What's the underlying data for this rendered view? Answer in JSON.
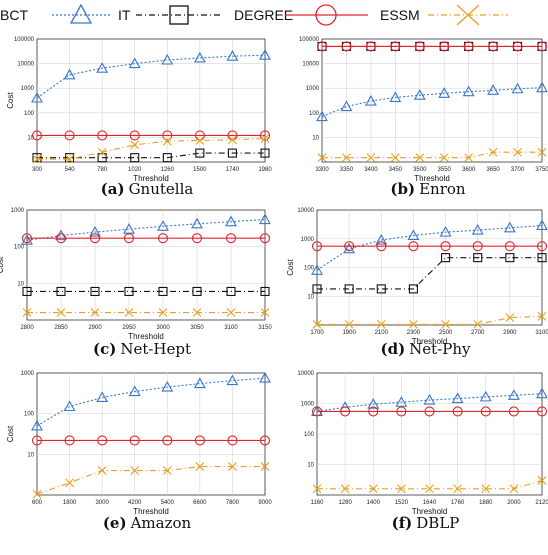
{
  "legend": {
    "items": [
      {
        "label": "BCT",
        "series": "BCT"
      },
      {
        "label": "IT",
        "series": "IT"
      },
      {
        "label": "DEGREE",
        "series": "DEGREE"
      },
      {
        "label": "ESSM",
        "series": "ESSM"
      }
    ]
  },
  "styles": {
    "BCT": {
      "color": "#3a78c9",
      "dash": "2,2",
      "marker": "triangle"
    },
    "IT": {
      "color": "#111111",
      "dash": "6,3,1,3",
      "marker": "square"
    },
    "DEGREE": {
      "color": "#e0242b",
      "dash": "",
      "marker": "circle"
    },
    "ESSM": {
      "color": "#e8a020",
      "dash": "6,3,1,3",
      "marker": "x"
    }
  },
  "chart_data": [
    {
      "type": "line",
      "id": "a",
      "caption_letter": "(a)",
      "caption_name": "Gnutella",
      "xlabel": "Threshold",
      "ylabel": "Cost",
      "yscale": "log",
      "x": [
        300,
        540,
        780,
        1020,
        1260,
        1500,
        1740,
        1980
      ],
      "x_ticks": [
        "300",
        "540",
        "780",
        "1020",
        "1260",
        "1500",
        "1740",
        "1980"
      ],
      "ylim": [
        1,
        100000
      ],
      "y_ticks": [
        {
          "v": 10,
          "label": "10"
        },
        {
          "v": 100,
          "label": "100"
        },
        {
          "v": 1000,
          "label": "1000"
        },
        {
          "v": 10000,
          "label": "10000"
        },
        {
          "v": 100000,
          "label": "100000"
        }
      ],
      "series": [
        {
          "name": "BCT",
          "values": [
            400,
            3500,
            6500,
            10000,
            14000,
            17000,
            20000,
            22000
          ]
        },
        {
          "name": "IT",
          "values": [
            1.5,
            1.5,
            1.5,
            1.5,
            1.5,
            2.3,
            2.3,
            2.3
          ]
        },
        {
          "name": "DEGREE",
          "values": [
            12,
            12,
            12,
            12,
            12,
            12,
            12,
            12
          ]
        },
        {
          "name": "ESSM",
          "values": [
            1.3,
            1.3,
            2.5,
            5,
            7,
            7.5,
            8,
            9
          ]
        }
      ]
    },
    {
      "type": "line",
      "id": "b",
      "caption_letter": "(b)",
      "caption_name": "Enron",
      "xlabel": "Threshold",
      "ylabel": "",
      "yscale": "log",
      "x": [
        3300,
        3350,
        3400,
        3450,
        3500,
        3550,
        3600,
        3650,
        3700,
        3750
      ],
      "x_ticks": [
        "3300",
        "3350",
        "3400",
        "3450",
        "3500",
        "3550",
        "3600",
        "3650",
        "3700",
        "3750"
      ],
      "ylim": [
        1,
        100000
      ],
      "y_ticks": [
        {
          "v": 10,
          "label": "10"
        },
        {
          "v": 100,
          "label": "100"
        },
        {
          "v": 1000,
          "label": "1000"
        },
        {
          "v": 10000,
          "label": "10000"
        },
        {
          "v": 100000,
          "label": "100000"
        }
      ],
      "series": [
        {
          "name": "BCT",
          "values": [
            70,
            180,
            300,
            420,
            520,
            620,
            720,
            820,
            950,
            1050
          ]
        },
        {
          "name": "IT",
          "values": [
            50000,
            50000,
            50000,
            50000,
            50000,
            50000,
            50000,
            50000,
            50000,
            50000
          ]
        },
        {
          "name": "DEGREE",
          "values": [
            50000,
            50000,
            50000,
            50000,
            50000,
            50000,
            50000,
            50000,
            50000,
            50000
          ]
        },
        {
          "name": "ESSM",
          "values": [
            1.5,
            1.5,
            1.5,
            1.5,
            1.5,
            1.5,
            1.5,
            2.5,
            2.5,
            2.5
          ]
        }
      ]
    },
    {
      "type": "line",
      "id": "c",
      "caption_letter": "(c)",
      "caption_name": "Net-Hept",
      "xlabel": "Threshold",
      "ylabel": "Cost",
      "yscale": "log",
      "x": [
        2800,
        2850,
        2900,
        2950,
        3000,
        3050,
        3100,
        3150
      ],
      "x_ticks": [
        "2800",
        "2850",
        "2900",
        "2950",
        "3000",
        "3050",
        "3100",
        "3150"
      ],
      "ylim": [
        1,
        1000
      ],
      "y_ticks": [
        {
          "v": 10,
          "label": "10"
        },
        {
          "v": 100,
          "label": "100"
        },
        {
          "v": 1000,
          "label": "1000"
        }
      ],
      "series": [
        {
          "name": "BCT",
          "values": [
            150,
            200,
            250,
            300,
            360,
            420,
            480,
            550
          ]
        },
        {
          "name": "IT",
          "values": [
            6,
            6,
            6,
            6,
            6,
            6,
            6,
            6
          ]
        },
        {
          "name": "DEGREE",
          "values": [
            170,
            170,
            170,
            170,
            170,
            170,
            170,
            170
          ]
        },
        {
          "name": "ESSM",
          "values": [
            1.6,
            1.6,
            1.6,
            1.6,
            1.6,
            1.6,
            1.6,
            1.6
          ]
        }
      ]
    },
    {
      "type": "line",
      "id": "d",
      "caption_letter": "(d)",
      "caption_name": "Net-Phy",
      "xlabel": "Threshold",
      "ylabel": "Cost",
      "yscale": "log",
      "x": [
        1700,
        1900,
        2100,
        2300,
        2500,
        2700,
        2900,
        3100
      ],
      "x_ticks": [
        "1700",
        "1900",
        "2100",
        "2300",
        "2500",
        "2700",
        "2900",
        "3100"
      ],
      "ylim": [
        1,
        10000
      ],
      "y_ticks": [
        {
          "v": 10,
          "label": "10"
        },
        {
          "v": 100,
          "label": "100"
        },
        {
          "v": 1000,
          "label": "1000"
        },
        {
          "v": 10000,
          "label": "10000"
        }
      ],
      "series": [
        {
          "name": "BCT",
          "values": [
            80,
            450,
            900,
            1300,
            1700,
            2000,
            2400,
            2900
          ]
        },
        {
          "name": "IT",
          "values": [
            18,
            18,
            18,
            18,
            220,
            220,
            220,
            220
          ]
        },
        {
          "name": "DEGREE",
          "values": [
            550,
            550,
            550,
            550,
            550,
            550,
            550,
            550
          ]
        },
        {
          "name": "ESSM",
          "values": [
            1.05,
            1.05,
            1.05,
            1.05,
            1.05,
            1.05,
            1.8,
            2
          ]
        }
      ]
    },
    {
      "type": "line",
      "id": "e",
      "caption_letter": "(e)",
      "caption_name": "Amazon",
      "xlabel": "Threshold",
      "ylabel": "Cost",
      "yscale": "log",
      "x": [
        600,
        1800,
        3000,
        4200,
        5400,
        6600,
        7800,
        9000
      ],
      "x_ticks": [
        "600",
        "1800",
        "3000",
        "4200",
        "5400",
        "6600",
        "7800",
        "9000"
      ],
      "ylim": [
        1,
        1000
      ],
      "y_ticks": [
        {
          "v": 10,
          "label": "10"
        },
        {
          "v": 100,
          "label": "100"
        },
        {
          "v": 1000,
          "label": "1000"
        }
      ],
      "series": [
        {
          "name": "BCT",
          "values": [
            50,
            150,
            250,
            350,
            450,
            550,
            650,
            750
          ]
        },
        {
          "name": "DEGREE",
          "values": [
            22,
            22,
            22,
            22,
            22,
            22,
            22,
            22
          ]
        },
        {
          "name": "ESSM",
          "values": [
            1.05,
            2,
            4,
            4,
            4,
            5,
            5,
            5
          ]
        }
      ]
    },
    {
      "type": "line",
      "id": "f",
      "caption_letter": "(f)",
      "caption_name": "DBLP",
      "xlabel": "Threshold",
      "ylabel": "",
      "yscale": "log",
      "x": [
        1160,
        1280,
        1400,
        1520,
        1640,
        1760,
        1880,
        2000,
        2120
      ],
      "x_ticks": [
        "1160",
        "1280",
        "1400",
        "1520",
        "1640",
        "1760",
        "1880",
        "2000",
        "2120"
      ],
      "ylim": [
        1,
        10000
      ],
      "y_ticks": [
        {
          "v": 10,
          "label": "10"
        },
        {
          "v": 100,
          "label": "100"
        },
        {
          "v": 1000,
          "label": "1000"
        },
        {
          "v": 10000,
          "label": "10000"
        }
      ],
      "series": [
        {
          "name": "BCT",
          "values": [
            550,
            750,
            950,
            1100,
            1300,
            1450,
            1650,
            1850,
            2100
          ]
        },
        {
          "name": "DEGREE",
          "values": [
            550,
            550,
            550,
            550,
            550,
            550,
            550,
            550,
            550
          ]
        },
        {
          "name": "ESSM",
          "values": [
            1.6,
            1.6,
            1.6,
            1.6,
            1.6,
            1.6,
            1.6,
            1.6,
            3
          ]
        }
      ]
    }
  ]
}
